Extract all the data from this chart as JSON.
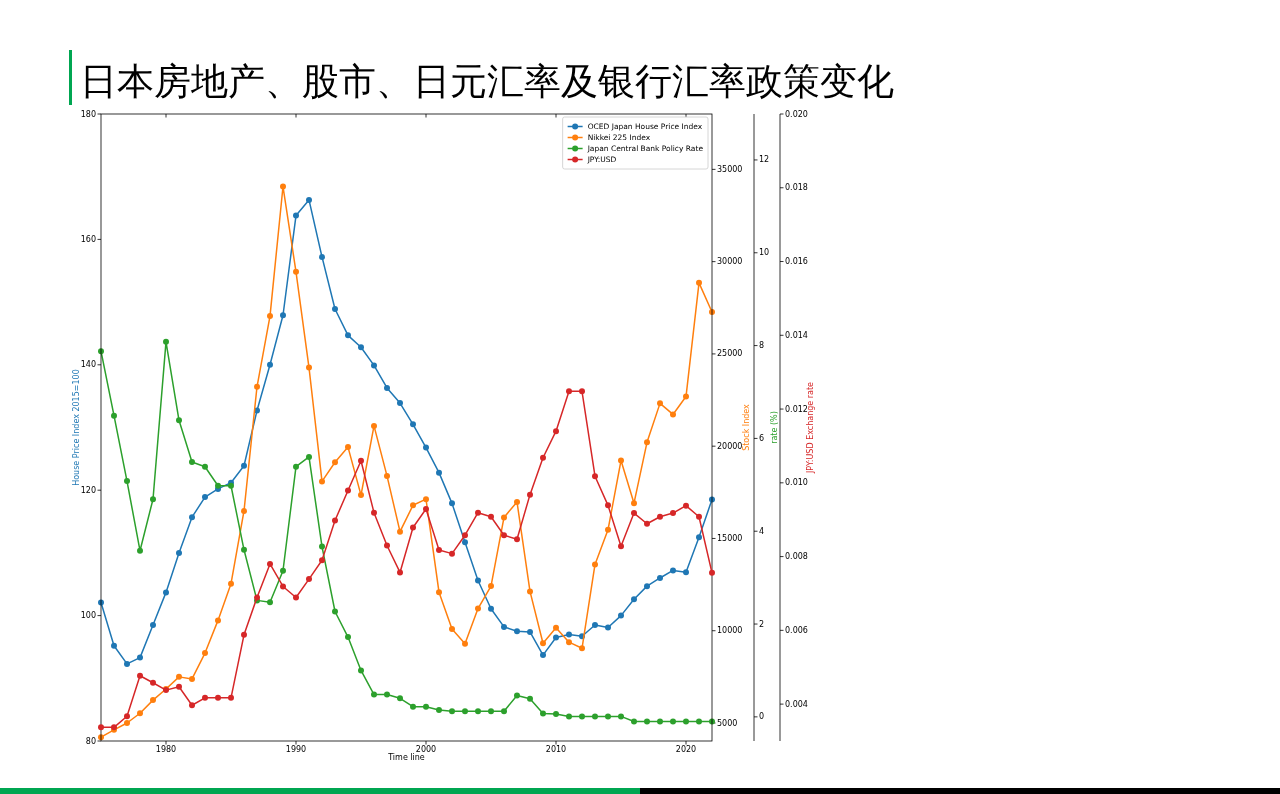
{
  "chart_data": [
    {
      "type": "line",
      "title": "日本房地产、股市、日元汇率及银行汇率政策变化",
      "xlabel": "Time line",
      "ylabel": "House Price Index 2015=100",
      "y2label": "Stock Index",
      "y3label": "rate (%)",
      "x": [
        1975,
        1976,
        1977,
        1978,
        1979,
        1980,
        1981,
        1982,
        1983,
        1984,
        1985,
        1986,
        1987,
        1988,
        1989,
        1990,
        1991,
        1992,
        1993,
        1994,
        1995,
        1996,
        1997,
        1998,
        1999,
        2000,
        2001,
        2002,
        2003,
        2004,
        2005,
        2006,
        2007,
        2008,
        2009,
        2010,
        2011,
        2012,
        2013,
        2014,
        2015,
        2016,
        2017,
        2018,
        2019,
        2020,
        2021,
        2022
      ],
      "xlim": [
        1975,
        2022
      ],
      "xticks": [
        1980,
        1990,
        2000,
        2010,
        2020
      ],
      "ylim": [
        80,
        180
      ],
      "yticks": [
        80,
        100,
        120,
        140,
        160,
        180
      ],
      "y2lim": [
        4025,
        38000
      ],
      "y2ticks": [
        5000,
        10000,
        15000,
        20000,
        25000,
        30000,
        35000
      ],
      "y3lim": [
        -0.52,
        12.99
      ],
      "y3ticks": [
        0,
        2,
        4,
        6,
        8,
        10,
        12
      ],
      "marker": "circle",
      "line_style": "solid",
      "legend": "top right",
      "series": [
        {
          "name": "OCED Japan House Price Index",
          "color": "#1f77b4",
          "axis": "y",
          "values": [
            102.1,
            95.2,
            92.3,
            93.3,
            98.5,
            103.7,
            110.0,
            115.7,
            118.9,
            120.2,
            121.2,
            123.9,
            132.7,
            140.0,
            147.9,
            163.8,
            166.3,
            157.2,
            148.9,
            144.7,
            142.8,
            139.9,
            136.3,
            133.9,
            130.5,
            126.8,
            122.8,
            117.9,
            111.7,
            105.6,
            101.1,
            98.2,
            97.5,
            97.4,
            93.7,
            96.5,
            97.0,
            96.7,
            98.5,
            98.1,
            100.0,
            102.6,
            104.7,
            106.0,
            107.2,
            106.9,
            112.5,
            118.5
          ]
        },
        {
          "name": "Nikkei 225 Index",
          "color": "#ff7f0e",
          "axis": "y2",
          "values": [
            4230,
            4630,
            5000,
            5530,
            6240,
            6840,
            7500,
            7390,
            8790,
            10560,
            12550,
            16490,
            23220,
            27050,
            34070,
            29450,
            24260,
            18090,
            19130,
            19950,
            17350,
            21100,
            18390,
            15370,
            16800,
            17130,
            12090,
            10090,
            9300,
            11200,
            12420,
            16140,
            16980,
            12130,
            9320,
            10160,
            9380,
            9050,
            13590,
            15470,
            19220,
            16910,
            20210,
            22320,
            21720,
            22690,
            28850,
            27270
          ]
        },
        {
          "name": "Japan Central Bank Policy Rate",
          "color": "#2ca02c",
          "axis": "y3",
          "values": [
            7.88,
            6.49,
            5.08,
            3.58,
            4.69,
            8.08,
            6.39,
            5.49,
            5.39,
            4.98,
            4.98,
            3.6,
            2.51,
            2.47,
            3.15,
            5.39,
            5.6,
            3.67,
            2.27,
            1.72,
            1.0,
            0.48,
            0.48,
            0.4,
            0.22,
            0.22,
            0.15,
            0.12,
            0.12,
            0.12,
            0.12,
            0.12,
            0.46,
            0.39,
            0.07,
            0.06,
            0.01,
            0.01,
            0.01,
            0.01,
            0.01,
            -0.1,
            -0.1,
            -0.1,
            -0.1,
            -0.1,
            -0.1,
            -0.1
          ]
        }
      ]
    },
    {
      "type": "line",
      "ylabel": "JPY:USD Exchange rate",
      "x": [
        1975,
        1976,
        1977,
        1978,
        1979,
        1980,
        1981,
        1982,
        1983,
        1984,
        1985,
        1986,
        1987,
        1988,
        1989,
        1990,
        1991,
        1992,
        1993,
        1994,
        1995,
        1996,
        1997,
        1998,
        1999,
        2000,
        2001,
        2002,
        2003,
        2004,
        2005,
        2006,
        2007,
        2008,
        2009,
        2010,
        2011,
        2012,
        2013,
        2014,
        2015,
        2016,
        2017,
        2018,
        2019,
        2020,
        2021,
        2022
      ],
      "xlim": [
        1975,
        2022
      ],
      "tick_labels": "y",
      "ylim": [
        0.003,
        0.02
      ],
      "yticks": [
        0.004,
        0.006,
        0.008,
        {
          "value": 0.01,
          "label": "0.010"
        },
        0.012,
        0.014,
        0.016,
        0.018,
        {
          "value": 0.02,
          "label": "0.020"
        }
      ],
      "marker": "circle",
      "line_style": "solid",
      "legend": "top right",
      "series": [
        {
          "name": "JPY:USD",
          "color": "#d62728",
          "values": [
            0.00337,
            0.00337,
            0.00367,
            0.00477,
            0.00458,
            0.00438,
            0.00447,
            0.00397,
            0.00417,
            0.00417,
            0.00417,
            0.00588,
            0.00689,
            0.0078,
            0.00719,
            0.00689,
            0.00739,
            0.0079,
            0.00898,
            0.00979,
            0.0106,
            0.00919,
            0.0083,
            0.00757,
            0.00879,
            0.00929,
            0.00818,
            0.00808,
            0.00858,
            0.00919,
            0.00908,
            0.00858,
            0.00847,
            0.00968,
            0.01068,
            0.0114,
            0.01248,
            0.01248,
            0.01018,
            0.00939,
            0.00828,
            0.00918,
            0.00889,
            0.00908,
            0.00918,
            0.00938,
            0.00908,
            0.00756
          ]
        }
      ]
    }
  ]
}
